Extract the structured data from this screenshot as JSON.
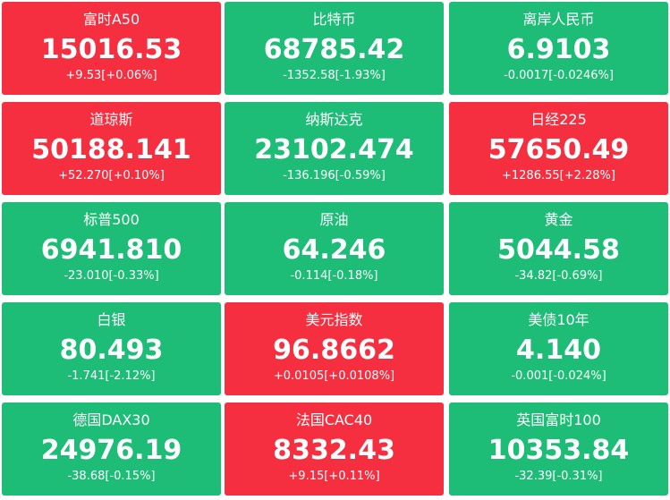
{
  "tiles": [
    {
      "name": "富时A50",
      "price": "15016.53",
      "change": "+9.53[+0.06%]",
      "color": "#f52f3f"
    },
    {
      "name": "比特币",
      "price": "68785.42",
      "change": "-1352.58[-1.93%]",
      "color": "#1dbd78"
    },
    {
      "name": "离岸人民币",
      "price": "6.9103",
      "change": "-0.0017[-0.0246%]",
      "color": "#1dbd78"
    },
    {
      "name": "道琼斯",
      "price": "50188.141",
      "change": "+52.270[+0.10%]",
      "color": "#f52f3f"
    },
    {
      "name": "纳斯达克",
      "price": "23102.474",
      "change": "-136.196[-0.59%]",
      "color": "#1dbd78"
    },
    {
      "name": "日经225",
      "price": "57650.49",
      "change": "+1286.55[+2.28%]",
      "color": "#f52f3f"
    },
    {
      "name": "标普500",
      "price": "6941.810",
      "change": "-23.010[-0.33%]",
      "color": "#1dbd78"
    },
    {
      "name": "原油",
      "price": "64.246",
      "change": "-0.114[-0.18%]",
      "color": "#1dbd78"
    },
    {
      "name": "黄金",
      "price": "5044.58",
      "change": "-34.82[-0.69%]",
      "color": "#1dbd78"
    },
    {
      "name": "白银",
      "price": "80.493",
      "change": "-1.741[-2.12%]",
      "color": "#1dbd78"
    },
    {
      "name": "美元指数",
      "price": "96.8662",
      "change": "+0.0105[+0.0108%]",
      "color": "#f52f3f"
    },
    {
      "name": "美债10年",
      "price": "4.140",
      "change": "-0.001[-0.024%]",
      "color": "#1dbd78"
    },
    {
      "name": "德国DAX30",
      "price": "24976.19",
      "change": "-38.68[-0.15%]",
      "color": "#1dbd78"
    },
    {
      "name": "法国CAC40",
      "price": "8332.43",
      "change": "+9.15[+0.11%]",
      "color": "#f52f3f"
    },
    {
      "name": "英国富时100",
      "price": "10353.84",
      "change": "-32.39[-0.31%]",
      "color": "#1dbd78"
    }
  ]
}
